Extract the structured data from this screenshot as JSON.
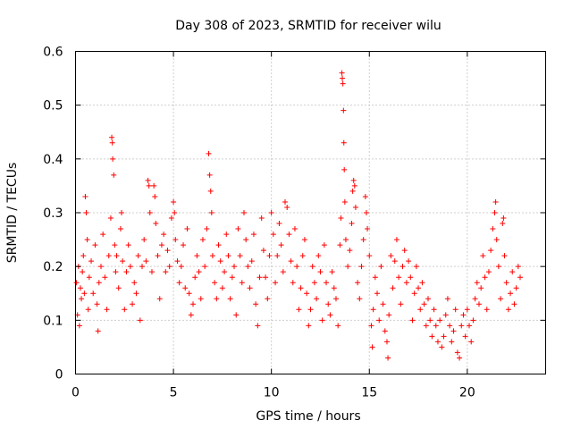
{
  "chart_data": {
    "type": "scatter",
    "title": "Day 308 of 2023, SRMTID for receiver wilu",
    "xlabel": "GPS time / hours",
    "ylabel": "SRMTID / TECUs",
    "xlim": [
      0,
      24
    ],
    "ylim": [
      0,
      0.6
    ],
    "xticks": [
      0,
      5,
      10,
      15,
      20
    ],
    "xtick_labels": [
      "0",
      "5",
      "10",
      "15",
      "20"
    ],
    "yticks": [
      0,
      0.1,
      0.2,
      0.3,
      0.4,
      0.5,
      0.6
    ],
    "ytick_labels": [
      "0",
      "0.1",
      "0.2",
      "0.3",
      "0.4",
      "0.5",
      "0.6"
    ],
    "grid": true,
    "marker": "+",
    "color": "#ff0000",
    "series": [
      {
        "name": "SRMTID",
        "points": [
          [
            0.05,
            0.17
          ],
          [
            0.1,
            0.11
          ],
          [
            0.15,
            0.2
          ],
          [
            0.2,
            0.09
          ],
          [
            0.25,
            0.16
          ],
          [
            0.3,
            0.14
          ],
          [
            0.35,
            0.19
          ],
          [
            0.4,
            0.22
          ],
          [
            0.45,
            0.15
          ],
          [
            0.5,
            0.33
          ],
          [
            0.55,
            0.3
          ],
          [
            0.6,
            0.25
          ],
          [
            0.65,
            0.12
          ],
          [
            0.7,
            0.18
          ],
          [
            0.8,
            0.21
          ],
          [
            0.9,
            0.15
          ],
          [
            1.0,
            0.24
          ],
          [
            1.1,
            0.13
          ],
          [
            1.15,
            0.08
          ],
          [
            1.2,
            0.17
          ],
          [
            1.3,
            0.2
          ],
          [
            1.4,
            0.26
          ],
          [
            1.5,
            0.18
          ],
          [
            1.6,
            0.12
          ],
          [
            1.7,
            0.22
          ],
          [
            1.8,
            0.29
          ],
          [
            1.85,
            0.44
          ],
          [
            1.88,
            0.43
          ],
          [
            1.9,
            0.4
          ],
          [
            1.95,
            0.37
          ],
          [
            2.0,
            0.24
          ],
          [
            2.05,
            0.19
          ],
          [
            2.1,
            0.22
          ],
          [
            2.2,
            0.16
          ],
          [
            2.3,
            0.27
          ],
          [
            2.35,
            0.3
          ],
          [
            2.4,
            0.21
          ],
          [
            2.5,
            0.12
          ],
          [
            2.6,
            0.19
          ],
          [
            2.7,
            0.24
          ],
          [
            2.8,
            0.2
          ],
          [
            2.9,
            0.13
          ],
          [
            3.0,
            0.17
          ],
          [
            3.1,
            0.15
          ],
          [
            3.2,
            0.22
          ],
          [
            3.3,
            0.1
          ],
          [
            3.4,
            0.2
          ],
          [
            3.5,
            0.25
          ],
          [
            3.6,
            0.21
          ],
          [
            3.7,
            0.36
          ],
          [
            3.75,
            0.35
          ],
          [
            3.8,
            0.3
          ],
          [
            3.9,
            0.19
          ],
          [
            4.0,
            0.35
          ],
          [
            4.05,
            0.33
          ],
          [
            4.1,
            0.28
          ],
          [
            4.2,
            0.22
          ],
          [
            4.3,
            0.14
          ],
          [
            4.4,
            0.24
          ],
          [
            4.5,
            0.26
          ],
          [
            4.6,
            0.19
          ],
          [
            4.7,
            0.23
          ],
          [
            4.8,
            0.2
          ],
          [
            4.9,
            0.29
          ],
          [
            5.0,
            0.32
          ],
          [
            5.05,
            0.3
          ],
          [
            5.1,
            0.25
          ],
          [
            5.2,
            0.21
          ],
          [
            5.3,
            0.17
          ],
          [
            5.4,
            0.2
          ],
          [
            5.5,
            0.24
          ],
          [
            5.6,
            0.16
          ],
          [
            5.7,
            0.27
          ],
          [
            5.8,
            0.15
          ],
          [
            5.9,
            0.11
          ],
          [
            6.0,
            0.13
          ],
          [
            6.1,
            0.18
          ],
          [
            6.2,
            0.22
          ],
          [
            6.3,
            0.19
          ],
          [
            6.4,
            0.14
          ],
          [
            6.5,
            0.25
          ],
          [
            6.6,
            0.2
          ],
          [
            6.7,
            0.27
          ],
          [
            6.8,
            0.41
          ],
          [
            6.85,
            0.37
          ],
          [
            6.9,
            0.34
          ],
          [
            6.95,
            0.3
          ],
          [
            7.0,
            0.22
          ],
          [
            7.1,
            0.17
          ],
          [
            7.2,
            0.14
          ],
          [
            7.3,
            0.24
          ],
          [
            7.4,
            0.21
          ],
          [
            7.5,
            0.16
          ],
          [
            7.6,
            0.19
          ],
          [
            7.7,
            0.26
          ],
          [
            7.8,
            0.22
          ],
          [
            7.9,
            0.14
          ],
          [
            8.0,
            0.18
          ],
          [
            8.1,
            0.2
          ],
          [
            8.2,
            0.11
          ],
          [
            8.3,
            0.27
          ],
          [
            8.4,
            0.22
          ],
          [
            8.5,
            0.17
          ],
          [
            8.6,
            0.3
          ],
          [
            8.7,
            0.25
          ],
          [
            8.8,
            0.2
          ],
          [
            8.9,
            0.16
          ],
          [
            9.0,
            0.21
          ],
          [
            9.1,
            0.26
          ],
          [
            9.2,
            0.13
          ],
          [
            9.3,
            0.09
          ],
          [
            9.4,
            0.18
          ],
          [
            9.5,
            0.29
          ],
          [
            9.6,
            0.23
          ],
          [
            9.7,
            0.18
          ],
          [
            9.8,
            0.14
          ],
          [
            9.9,
            0.22
          ],
          [
            10.0,
            0.3
          ],
          [
            10.1,
            0.26
          ],
          [
            10.2,
            0.17
          ],
          [
            10.3,
            0.22
          ],
          [
            10.4,
            0.28
          ],
          [
            10.5,
            0.24
          ],
          [
            10.6,
            0.19
          ],
          [
            10.7,
            0.32
          ],
          [
            10.8,
            0.31
          ],
          [
            10.9,
            0.26
          ],
          [
            11.0,
            0.21
          ],
          [
            11.1,
            0.17
          ],
          [
            11.2,
            0.27
          ],
          [
            11.3,
            0.2
          ],
          [
            11.4,
            0.12
          ],
          [
            11.5,
            0.16
          ],
          [
            11.6,
            0.22
          ],
          [
            11.7,
            0.25
          ],
          [
            11.8,
            0.15
          ],
          [
            11.9,
            0.09
          ],
          [
            12.0,
            0.12
          ],
          [
            12.1,
            0.2
          ],
          [
            12.2,
            0.17
          ],
          [
            12.3,
            0.14
          ],
          [
            12.4,
            0.22
          ],
          [
            12.5,
            0.19
          ],
          [
            12.6,
            0.1
          ],
          [
            12.7,
            0.24
          ],
          [
            12.8,
            0.17
          ],
          [
            12.9,
            0.13
          ],
          [
            13.0,
            0.11
          ],
          [
            13.1,
            0.19
          ],
          [
            13.2,
            0.16
          ],
          [
            13.3,
            0.14
          ],
          [
            13.4,
            0.09
          ],
          [
            13.5,
            0.24
          ],
          [
            13.55,
            0.29
          ],
          [
            13.6,
            0.56
          ],
          [
            13.62,
            0.55
          ],
          [
            13.65,
            0.54
          ],
          [
            13.68,
            0.49
          ],
          [
            13.7,
            0.43
          ],
          [
            13.72,
            0.38
          ],
          [
            13.75,
            0.32
          ],
          [
            13.8,
            0.25
          ],
          [
            13.9,
            0.2
          ],
          [
            14.0,
            0.23
          ],
          [
            14.1,
            0.28
          ],
          [
            14.15,
            0.34
          ],
          [
            14.2,
            0.36
          ],
          [
            14.25,
            0.35
          ],
          [
            14.3,
            0.31
          ],
          [
            14.4,
            0.17
          ],
          [
            14.5,
            0.14
          ],
          [
            14.6,
            0.2
          ],
          [
            14.7,
            0.25
          ],
          [
            14.8,
            0.33
          ],
          [
            14.85,
            0.3
          ],
          [
            14.9,
            0.27
          ],
          [
            15.0,
            0.22
          ],
          [
            15.1,
            0.09
          ],
          [
            15.15,
            0.05
          ],
          [
            15.2,
            0.12
          ],
          [
            15.3,
            0.18
          ],
          [
            15.4,
            0.15
          ],
          [
            15.5,
            0.1
          ],
          [
            15.6,
            0.2
          ],
          [
            15.7,
            0.13
          ],
          [
            15.8,
            0.08
          ],
          [
            15.9,
            0.06
          ],
          [
            15.95,
            0.03
          ],
          [
            16.0,
            0.11
          ],
          [
            16.1,
            0.22
          ],
          [
            16.2,
            0.16
          ],
          [
            16.3,
            0.21
          ],
          [
            16.4,
            0.25
          ],
          [
            16.5,
            0.18
          ],
          [
            16.6,
            0.13
          ],
          [
            16.7,
            0.2
          ],
          [
            16.8,
            0.23
          ],
          [
            16.9,
            0.17
          ],
          [
            17.0,
            0.21
          ],
          [
            17.1,
            0.18
          ],
          [
            17.2,
            0.1
          ],
          [
            17.3,
            0.15
          ],
          [
            17.4,
            0.2
          ],
          [
            17.5,
            0.16
          ],
          [
            17.6,
            0.12
          ],
          [
            17.7,
            0.17
          ],
          [
            17.8,
            0.13
          ],
          [
            17.9,
            0.09
          ],
          [
            18.0,
            0.14
          ],
          [
            18.1,
            0.1
          ],
          [
            18.2,
            0.07
          ],
          [
            18.3,
            0.12
          ],
          [
            18.4,
            0.09
          ],
          [
            18.5,
            0.06
          ],
          [
            18.6,
            0.1
          ],
          [
            18.7,
            0.05
          ],
          [
            18.8,
            0.07
          ],
          [
            18.9,
            0.11
          ],
          [
            19.0,
            0.14
          ],
          [
            19.1,
            0.09
          ],
          [
            19.2,
            0.06
          ],
          [
            19.3,
            0.08
          ],
          [
            19.4,
            0.12
          ],
          [
            19.5,
            0.04
          ],
          [
            19.6,
            0.03
          ],
          [
            19.7,
            0.09
          ],
          [
            19.8,
            0.11
          ],
          [
            19.9,
            0.07
          ],
          [
            20.0,
            0.12
          ],
          [
            20.1,
            0.09
          ],
          [
            20.2,
            0.06
          ],
          [
            20.3,
            0.1
          ],
          [
            20.4,
            0.14
          ],
          [
            20.5,
            0.17
          ],
          [
            20.6,
            0.13
          ],
          [
            20.7,
            0.16
          ],
          [
            20.8,
            0.22
          ],
          [
            20.9,
            0.18
          ],
          [
            21.0,
            0.12
          ],
          [
            21.1,
            0.19
          ],
          [
            21.2,
            0.23
          ],
          [
            21.3,
            0.27
          ],
          [
            21.4,
            0.3
          ],
          [
            21.45,
            0.32
          ],
          [
            21.5,
            0.25
          ],
          [
            21.6,
            0.2
          ],
          [
            21.7,
            0.14
          ],
          [
            21.8,
            0.28
          ],
          [
            21.85,
            0.29
          ],
          [
            21.9,
            0.22
          ],
          [
            22.0,
            0.17
          ],
          [
            22.1,
            0.12
          ],
          [
            22.2,
            0.15
          ],
          [
            22.3,
            0.19
          ],
          [
            22.4,
            0.13
          ],
          [
            22.5,
            0.16
          ],
          [
            22.6,
            0.2
          ],
          [
            22.7,
            0.18
          ]
        ]
      }
    ]
  }
}
